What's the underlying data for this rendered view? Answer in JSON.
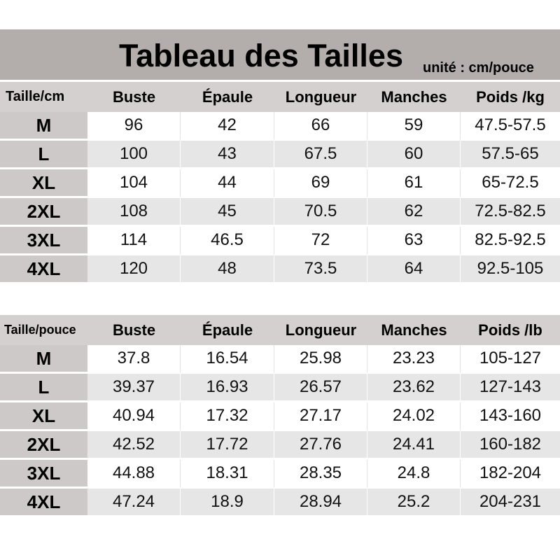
{
  "title": "Tableau des Tailles",
  "unit": "unité : cm/pouce",
  "tables": [
    {
      "headers": [
        "Taille/cm",
        "Buste",
        "Épaule",
        "Longueur",
        "Manches",
        "Poids /kg"
      ],
      "rows": [
        [
          "M",
          "96",
          "42",
          "66",
          "59",
          "47.5-57.5"
        ],
        [
          "L",
          "100",
          "43",
          "67.5",
          "60",
          "57.5-65"
        ],
        [
          "XL",
          "104",
          "44",
          "69",
          "61",
          "65-72.5"
        ],
        [
          "2XL",
          "108",
          "45",
          "70.5",
          "62",
          "72.5-82.5"
        ],
        [
          "3XL",
          "114",
          "46.5",
          "72",
          "63",
          "82.5-92.5"
        ],
        [
          "4XL",
          "120",
          "48",
          "73.5",
          "64",
          "92.5-105"
        ]
      ]
    },
    {
      "headers": [
        "Taille/pouce",
        "Buste",
        "Épaule",
        "Longueur",
        "Manches",
        "Poids /lb"
      ],
      "rows": [
        [
          "M",
          "37.8",
          "16.54",
          "25.98",
          "23.23",
          "105-127"
        ],
        [
          "L",
          "39.37",
          "16.93",
          "26.57",
          "23.62",
          "127-143"
        ],
        [
          "XL",
          "40.94",
          "17.32",
          "27.17",
          "24.02",
          "143-160"
        ],
        [
          "2XL",
          "42.52",
          "17.72",
          "27.76",
          "24.41",
          "160-182"
        ],
        [
          "3XL",
          "44.88",
          "18.31",
          "28.35",
          "24.8",
          "182-204"
        ],
        [
          "4XL",
          "47.24",
          "18.9",
          "28.94",
          "25.2",
          "204-231"
        ]
      ]
    }
  ]
}
